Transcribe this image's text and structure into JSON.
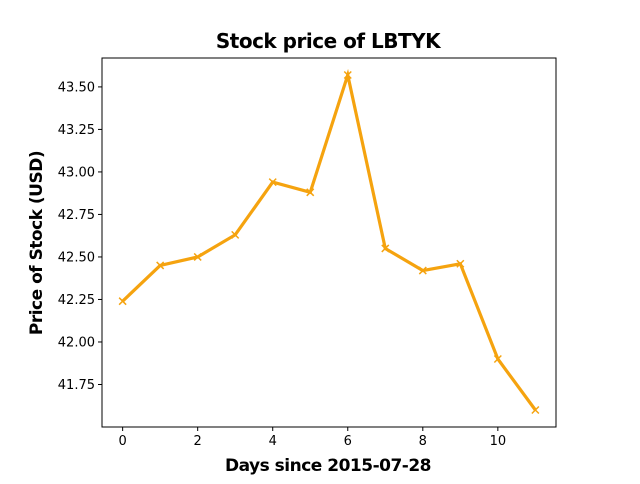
{
  "chart_data": {
    "type": "line",
    "title": "Stock price of LBTYK",
    "xlabel": "Days since 2015-07-28",
    "ylabel": "Price of Stock (USD)",
    "x": [
      0,
      1,
      2,
      3,
      4,
      5,
      6,
      7,
      8,
      9,
      10,
      11
    ],
    "series": [
      {
        "values": [
          42.24,
          42.45,
          42.5,
          42.63,
          42.94,
          42.88,
          43.57,
          42.55,
          42.42,
          42.46,
          41.9,
          41.6
        ]
      }
    ],
    "xlim": [
      -0.55,
      11.55
    ],
    "ylim": [
      41.5,
      43.67
    ],
    "xticks": [
      0,
      2,
      4,
      6,
      8,
      10
    ],
    "xtick_labels": [
      "0",
      "2",
      "4",
      "6",
      "8",
      "10"
    ],
    "yticks": [
      41.75,
      42.0,
      42.25,
      42.5,
      42.75,
      43.0,
      43.25,
      43.5
    ],
    "ytick_labels": [
      "41.75",
      "42.00",
      "42.25",
      "42.50",
      "42.75",
      "43.00",
      "43.25",
      "43.50"
    ],
    "line_color": "#f5a30f",
    "marker": "x",
    "grid": false,
    "legend": false
  }
}
